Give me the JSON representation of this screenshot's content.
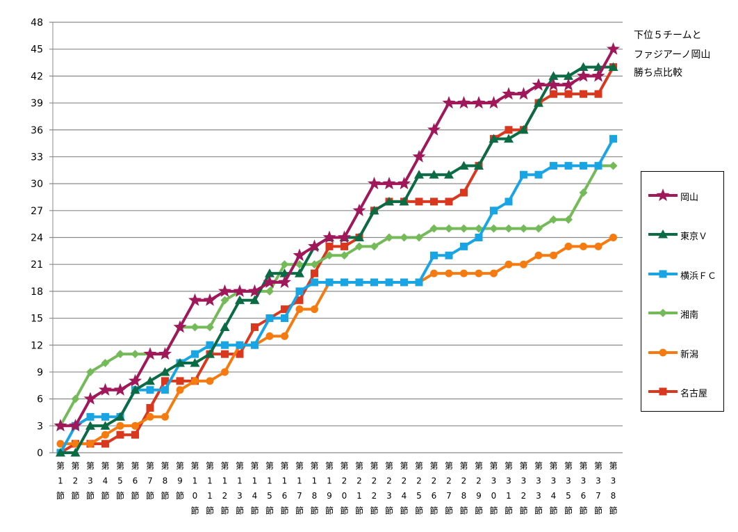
{
  "title_lines": [
    "下位５チームと",
    "ファジアーノ岡山",
    "勝ち点比較"
  ],
  "chart_data": {
    "type": "line",
    "title": "下位５チームと ファジアーノ岡山 勝ち点比較",
    "xlabel": "",
    "ylabel": "",
    "ylim": [
      0,
      48
    ],
    "yticks": [
      0,
      3,
      6,
      9,
      12,
      15,
      18,
      21,
      24,
      27,
      30,
      33,
      36,
      39,
      42,
      45,
      48
    ],
    "grid": "horizontal",
    "legend_position": "right",
    "x": [
      "第1節",
      "第2節",
      "第3節",
      "第4節",
      "第5節",
      "第6節",
      "第7節",
      "第8節",
      "第9節",
      "第10節",
      "第11節",
      "第12節",
      "第13節",
      "第14節",
      "第15節",
      "第16節",
      "第17節",
      "第18節",
      "第19節",
      "第20節",
      "第21節",
      "第22節",
      "第23節",
      "第24節",
      "第25節",
      "第26節",
      "第27節",
      "第28節",
      "第29節",
      "第30節",
      "第31節",
      "第32節",
      "第33節",
      "第34節",
      "第35節",
      "第36節",
      "第37節",
      "第38節"
    ],
    "series": [
      {
        "name": "岡山",
        "color": "#a0175a",
        "marker": "star",
        "values": [
          3,
          3,
          6,
          7,
          7,
          8,
          11,
          11,
          14,
          17,
          17,
          18,
          18,
          18,
          19,
          19,
          22,
          23,
          24,
          24,
          27,
          30,
          30,
          30,
          33,
          36,
          39,
          39,
          39,
          39,
          40,
          40,
          41,
          41,
          41,
          42,
          42,
          45
        ]
      },
      {
        "name": "東京Ｖ",
        "color": "#0a6b45",
        "marker": "triangle",
        "values": [
          0,
          0,
          3,
          3,
          4,
          7,
          8,
          9,
          10,
          10,
          11,
          14,
          17,
          17,
          20,
          20,
          20,
          23,
          24,
          24,
          24,
          27,
          28,
          28,
          31,
          31,
          31,
          32,
          32,
          35,
          35,
          36,
          39,
          42,
          42,
          43,
          43,
          43
        ]
      },
      {
        "name": "横浜ＦＣ",
        "color": "#19a5e3",
        "marker": "square",
        "values": [
          0,
          3,
          4,
          4,
          4,
          7,
          7,
          7,
          10,
          11,
          12,
          12,
          12,
          12,
          15,
          15,
          18,
          19,
          19,
          19,
          19,
          19,
          19,
          19,
          19,
          22,
          22,
          23,
          24,
          27,
          28,
          31,
          31,
          32,
          32,
          32,
          32,
          35
        ]
      },
      {
        "name": "湘南",
        "color": "#74ba58",
        "marker": "diamond",
        "values": [
          3,
          6,
          9,
          10,
          11,
          11,
          11,
          11,
          14,
          14,
          14,
          17,
          18,
          18,
          18,
          21,
          21,
          21,
          22,
          22,
          23,
          23,
          24,
          24,
          24,
          25,
          25,
          25,
          25,
          25,
          25,
          25,
          25,
          26,
          26,
          29,
          32,
          32
        ]
      },
      {
        "name": "新潟",
        "color": "#f57b10",
        "marker": "circle",
        "values": [
          1,
          1,
          1,
          2,
          3,
          3,
          4,
          4,
          7,
          8,
          8,
          9,
          12,
          12,
          13,
          13,
          16,
          16,
          19,
          19,
          19,
          19,
          19,
          19,
          19,
          20,
          20,
          20,
          20,
          20,
          21,
          21,
          22,
          22,
          23,
          23,
          23,
          24
        ]
      },
      {
        "name": "名古屋",
        "color": "#d9381e",
        "marker": "square",
        "values": [
          0,
          1,
          1,
          1,
          2,
          2,
          5,
          8,
          8,
          8,
          11,
          11,
          11,
          14,
          15,
          16,
          17,
          20,
          23,
          23,
          24,
          27,
          28,
          28,
          28,
          28,
          28,
          29,
          32,
          35,
          36,
          36,
          39,
          40,
          40,
          40,
          40,
          43
        ]
      }
    ]
  }
}
